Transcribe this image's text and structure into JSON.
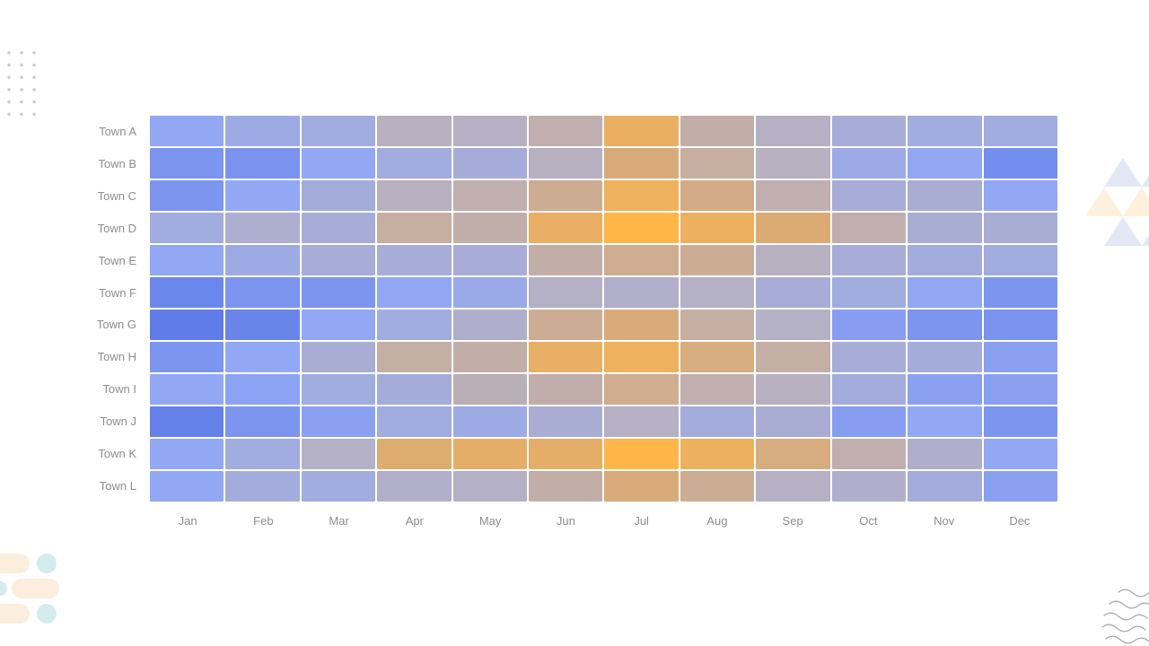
{
  "chart_data": {
    "type": "heatmap",
    "title": "",
    "xlabel": "",
    "ylabel": "",
    "legend": "none",
    "x_categories": [
      "Jan",
      "Feb",
      "Mar",
      "Apr",
      "May",
      "Jun",
      "Jul",
      "Aug",
      "Sep",
      "Oct",
      "Nov",
      "Dec"
    ],
    "y_categories": [
      "Town A",
      "Town B",
      "Town C",
      "Town D",
      "Town E",
      "Town F",
      "Town G",
      "Town H",
      "Town I",
      "Town J",
      "Town K",
      "Town L"
    ],
    "values": [
      [
        25,
        33,
        36,
        52,
        50,
        57,
        85,
        59,
        50,
        40,
        36,
        36
      ],
      [
        14,
        13,
        25,
        36,
        39,
        51,
        73,
        61,
        51,
        32,
        25,
        10
      ],
      [
        14,
        25,
        38,
        52,
        57,
        65,
        88,
        69,
        57,
        40,
        42,
        25
      ],
      [
        36,
        44,
        40,
        61,
        58,
        84,
        100,
        87,
        75,
        57,
        42,
        42
      ],
      [
        25,
        33,
        40,
        40,
        40,
        59,
        66,
        65,
        51,
        40,
        37,
        36
      ],
      [
        6,
        14,
        14,
        25,
        31,
        49,
        47,
        49,
        40,
        36,
        25,
        14
      ],
      [
        0,
        5,
        25,
        36,
        46,
        65,
        73,
        61,
        49,
        19,
        14,
        13
      ],
      [
        14,
        25,
        42,
        60,
        59,
        84,
        88,
        72,
        60,
        40,
        38,
        21
      ],
      [
        25,
        22,
        36,
        38,
        54,
        58,
        67,
        57,
        51,
        37,
        21,
        21
      ],
      [
        3,
        14,
        21,
        36,
        33,
        42,
        50,
        37,
        42,
        19,
        25,
        14
      ],
      [
        25,
        36,
        49,
        77,
        81,
        81,
        99,
        87,
        72,
        57,
        46,
        25
      ],
      [
        25,
        37,
        36,
        47,
        49,
        59,
        73,
        65,
        50,
        46,
        37,
        21
      ]
    ],
    "value_scale": {
      "min": 0,
      "max": 100
    },
    "colormap_stops": [
      {
        "v": 0,
        "color": "#5F7CE8"
      },
      {
        "v": 25,
        "color": "#92A8F4"
      },
      {
        "v": 50,
        "color": "#B5B0C4"
      },
      {
        "v": 75,
        "color": "#DCAB74"
      },
      {
        "v": 100,
        "color": "#FFB647"
      }
    ],
    "grid_gap_color": "#ffffff",
    "axis_label_color": "#8d8d8d"
  },
  "decorations": {
    "dot_color": "#c9c9c9",
    "triangle_lavender": "#e4e7f6",
    "triangle_peach": "#fdf0dc",
    "pill_peach": "#fceedc",
    "pill_teal": "#d4ecef",
    "wave_color": "#acacac"
  }
}
